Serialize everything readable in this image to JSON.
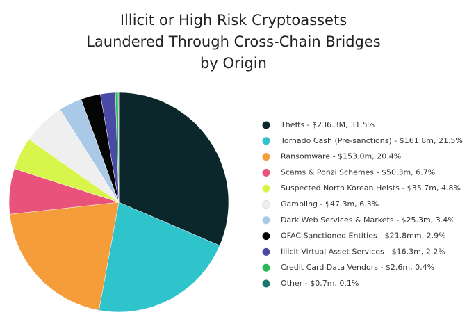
{
  "chart_data": {
    "type": "pie",
    "title": "Illicit or High Risk Cryptoassets Laundered Through Cross-Chain Bridges by Origin",
    "categories": [
      "Thefts - $236.3M, 31.5%",
      "Tornado Cash (Pre-sanctions) - $161.8m, 21.5%",
      "Ransomware - $153.0m, 20.4%",
      "Scams & Ponzi Schemes - $50.3m, 6.7%",
      "Suspected North Korean Heists - $35.7m, 4.8%",
      "Gambling - $47.3m, 6.3%",
      "Dark Web Services & Markets - $25.3m, 3.4%",
      "OFAC Sanctioned Entities - $21.8mm, 2.9%",
      "Illicit Virtual Asset Services - $16.3m, 2.2%",
      "Credit Card Data Vendors - $2.6m, 0.4%",
      "Other - $0.7m, 0.1%"
    ],
    "values": [
      31.5,
      21.5,
      20.4,
      6.7,
      4.8,
      6.3,
      3.4,
      2.9,
      2.2,
      0.4,
      0.1
    ],
    "colors": [
      "#0c272b",
      "#2fc3cb",
      "#f59c3b",
      "#e8527b",
      "#d8f54c",
      "#efefef",
      "#a9c9e7",
      "#050505",
      "#4b49a6",
      "#2db65a",
      "#19776d"
    ]
  }
}
